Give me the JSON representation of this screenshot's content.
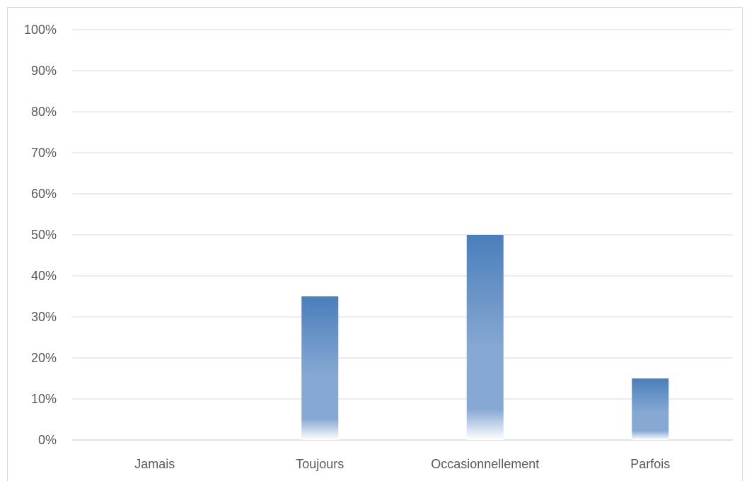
{
  "chart_data": {
    "type": "bar",
    "categories": [
      "Jamais",
      "Toujours",
      "Occasionnellement",
      "Parfois"
    ],
    "values": [
      0,
      35,
      50,
      15
    ],
    "ylim": [
      0,
      100
    ],
    "yticks": [
      "0%",
      "10%",
      "20%",
      "30%",
      "40%",
      "50%",
      "60%",
      "70%",
      "80%",
      "90%",
      "100%"
    ],
    "unit": "%",
    "title": "",
    "xlabel": "",
    "ylabel": "",
    "grid": true,
    "legend": "none",
    "colors": {
      "bar_top": "#4a7ebb",
      "bar_mid": "#86a8d2",
      "bar_bottom": "#ffffff",
      "grid": "#d9d9d9",
      "axis_text": "#595959"
    }
  }
}
